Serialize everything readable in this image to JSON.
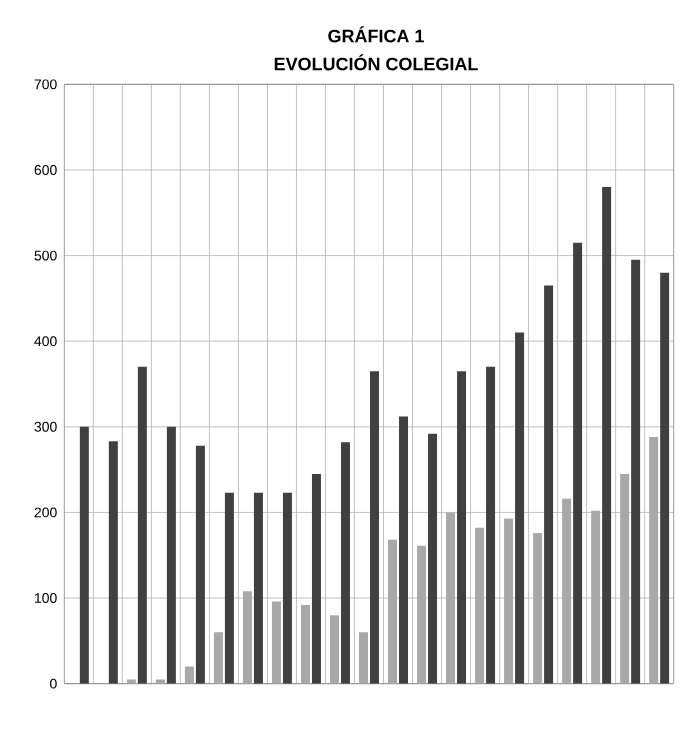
{
  "chart_data": {
    "type": "bar",
    "title": "GRÁFICA 1",
    "subtitle": "EVOLUCIÓN COLEGIAL",
    "categories": [
      null,
      null,
      null,
      null,
      null,
      null,
      null,
      null,
      null,
      null,
      null,
      null,
      null,
      null,
      null,
      null,
      null,
      null,
      null,
      null,
      null
    ],
    "series": [
      {
        "color": "#a8a8a8",
        "values": [
          0,
          0,
          5,
          5,
          20,
          60,
          108,
          96,
          92,
          80,
          60,
          168,
          161,
          200,
          182,
          193,
          176,
          216,
          202,
          245,
          288
        ]
      },
      {
        "color": "#404040",
        "values": [
          300,
          283,
          370,
          300,
          278,
          223,
          223,
          223,
          245,
          282,
          365,
          312,
          292,
          365,
          370,
          410,
          465,
          515,
          580,
          495,
          480
        ]
      }
    ],
    "ylim": [
      0,
      700
    ],
    "yticks": [
      0,
      100,
      200,
      300,
      400,
      500,
      600,
      700
    ],
    "grid": true
  }
}
